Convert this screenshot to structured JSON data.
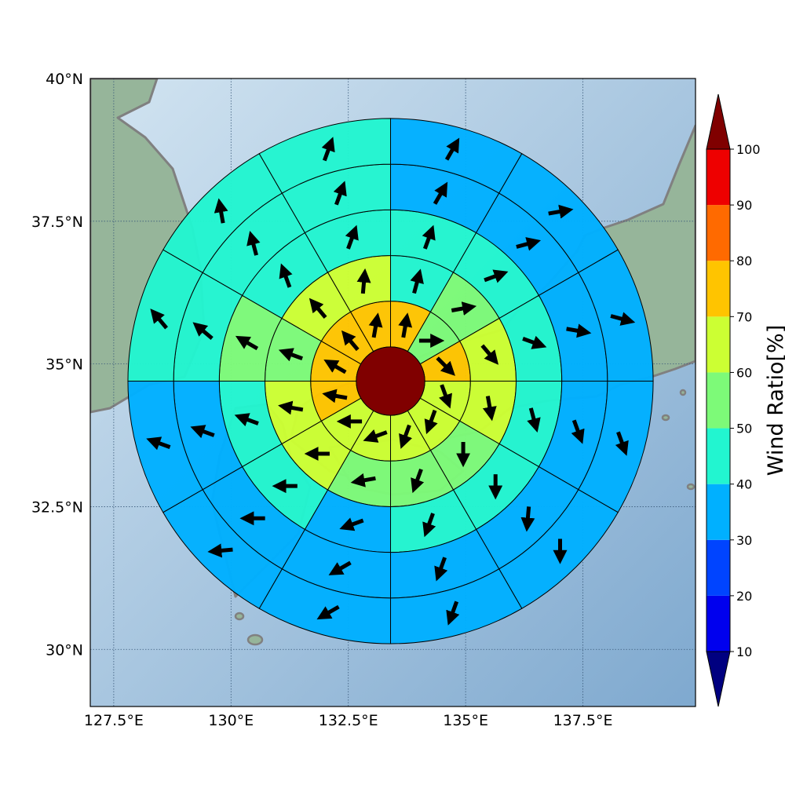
{
  "map": {
    "lat_ticks": [
      "40°N",
      "37.5°N",
      "35°N",
      "32.5°N",
      "30°N"
    ],
    "lon_ticks": [
      "127.5°E",
      "130°E",
      "132.5°E",
      "135°E",
      "137.5°E"
    ],
    "lon_range": [
      127.0,
      139.9
    ],
    "lat_range": [
      29.0,
      40.0
    ],
    "center": {
      "lon": 133.4,
      "lat": 34.7
    },
    "rings_deg_lat": [
      0.6,
      1.4,
      2.2,
      3.0,
      3.8,
      4.6
    ],
    "colors": {
      "sea_light": "#d2e4f1",
      "sea_dark": "#7fa9cf",
      "land": "#96b59a",
      "coastline": "#808080",
      "grid": "#3a5a7a",
      "center_disk": "#800000"
    }
  },
  "colorbar": {
    "label": "Wind Ratio[%]",
    "ticks": [
      "10",
      "20",
      "30",
      "40",
      "50",
      "60",
      "70",
      "80",
      "90",
      "100"
    ],
    "bins": [
      {
        "range": [
          10,
          20
        ],
        "color": "#0000ee"
      },
      {
        "range": [
          20,
          30
        ],
        "color": "#0044ff"
      },
      {
        "range": [
          30,
          40
        ],
        "color": "#00b0ff"
      },
      {
        "range": [
          40,
          50
        ],
        "color": "#22f5d0"
      },
      {
        "range": [
          50,
          60
        ],
        "color": "#7dfa78"
      },
      {
        "range": [
          60,
          70
        ],
        "color": "#ccff33"
      },
      {
        "range": [
          70,
          80
        ],
        "color": "#ffc400"
      },
      {
        "range": [
          80,
          90
        ],
        "color": "#ff6a00"
      },
      {
        "range": [
          90,
          100
        ],
        "color": "#ee0000"
      }
    ],
    "under_color": "#000080",
    "over_color": "#800000"
  },
  "wind_rose": {
    "sectors_per_ring": 12,
    "sector_order": "clockwise from north",
    "rings": [
      {
        "ring": 1,
        "values": [
          75,
          55,
          75,
          65,
          65,
          65,
          65,
          65,
          75,
          75,
          75,
          75
        ],
        "arrow_dir": [
          10,
          90,
          135,
          160,
          200,
          200,
          250,
          270,
          280,
          300,
          320,
          10
        ]
      },
      {
        "ring": 2,
        "values": [
          45,
          55,
          65,
          65,
          55,
          55,
          55,
          65,
          65,
          55,
          65,
          65
        ],
        "arrow_dir": [
          15,
          80,
          140,
          170,
          180,
          200,
          260,
          270,
          280,
          290,
          320,
          5
        ]
      },
      {
        "ring": 3,
        "values": [
          45,
          45,
          45,
          45,
          45,
          45,
          35,
          45,
          45,
          55,
          45,
          45
        ],
        "arrow_dir": [
          20,
          70,
          110,
          165,
          180,
          200,
          250,
          270,
          290,
          300,
          340,
          20
        ]
      },
      {
        "ring": 4,
        "values": [
          35,
          35,
          35,
          35,
          35,
          35,
          35,
          35,
          35,
          45,
          45,
          45
        ],
        "arrow_dir": [
          30,
          75,
          100,
          160,
          185,
          200,
          240,
          270,
          290,
          310,
          345,
          20
        ]
      },
      {
        "ring": 5,
        "values": [
          35,
          35,
          35,
          35,
          35,
          35,
          35,
          35,
          35,
          45,
          45,
          45
        ],
        "arrow_dir": [
          30,
          80,
          105,
          160,
          180,
          200,
          240,
          265,
          290,
          320,
          350,
          20
        ]
      },
      {
        "ring": 6,
        "values": [
          25,
          25,
          25,
          25,
          25,
          25,
          25,
          25,
          35,
          35,
          45,
          35
        ],
        "arrow_dir": [
          65,
          80,
          115,
          140,
          175,
          210,
          240,
          265,
          295,
          325,
          345,
          25
        ]
      }
    ]
  }
}
